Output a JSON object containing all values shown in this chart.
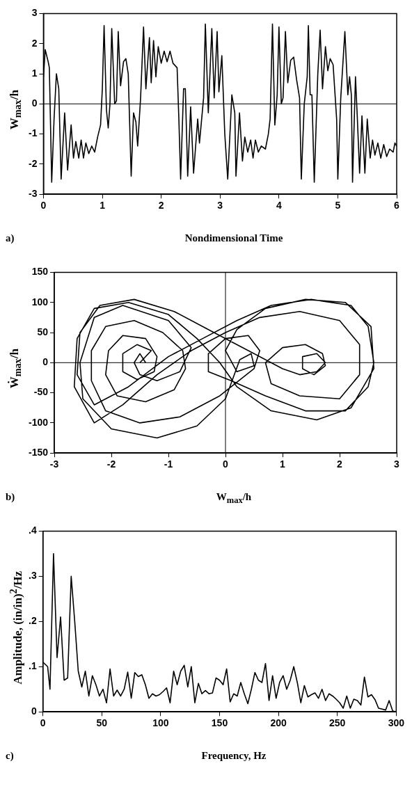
{
  "chart_data": [
    {
      "type": "line",
      "xlabel": "Nondimensional Time",
      "ylabel": "W$_{max}$/h",
      "annotations": [
        "a)"
      ],
      "marker": "none",
      "xlim": [
        0,
        6
      ],
      "ylim": [
        -3,
        3
      ],
      "xticks": [
        0,
        1,
        2,
        3,
        4,
        5,
        6
      ],
      "yticks": [
        -3,
        -2,
        -1,
        0,
        1,
        2,
        3
      ],
      "ref_lines": [
        {
          "axis": "y",
          "value": 0
        }
      ],
      "x": [
        0,
        0.03,
        0.08,
        0.1,
        0.14,
        0.18,
        0.22,
        0.26,
        0.3,
        0.36,
        0.41,
        0.47,
        0.51,
        0.55,
        0.6,
        0.64,
        0.68,
        0.72,
        0.77,
        0.82,
        0.87,
        0.92,
        0.97,
        1.0,
        1.03,
        1.07,
        1.1,
        1.13,
        1.16,
        1.21,
        1.24,
        1.27,
        1.31,
        1.36,
        1.4,
        1.44,
        1.49,
        1.53,
        1.57,
        1.6,
        1.65,
        1.7,
        1.74,
        1.8,
        1.83,
        1.87,
        1.91,
        1.95,
        2.0,
        2.05,
        2.1,
        2.15,
        2.2,
        2.27,
        2.3,
        2.33,
        2.38,
        2.41,
        2.45,
        2.5,
        2.55,
        2.62,
        2.65,
        2.72,
        2.75,
        2.8,
        2.86,
        2.9,
        2.95,
        2.98,
        3.03,
        3.08,
        3.13,
        3.2,
        3.25,
        3.27,
        3.33,
        3.38,
        3.42,
        3.47,
        3.52,
        3.56,
        3.6,
        3.65,
        3.7,
        3.77,
        3.82,
        3.85,
        3.89,
        3.93,
        3.97,
        4.0,
        4.04,
        4.07,
        4.11,
        4.15,
        4.2,
        4.25,
        4.3,
        4.35,
        4.38,
        4.43,
        4.48,
        4.5,
        4.53,
        4.56,
        4.6,
        4.66,
        4.7,
        4.74,
        4.79,
        4.83,
        4.87,
        4.92,
        4.98,
        5.0,
        5.05,
        5.12,
        5.17,
        5.2,
        5.23,
        5.25,
        5.28,
        5.3,
        5.33,
        5.37,
        5.41,
        5.46,
        5.5,
        5.55,
        5.59,
        5.63,
        5.68,
        5.73,
        5.78,
        5.83,
        5.88,
        5.94,
        5.97,
        6.0
      ],
      "series": [
        {
          "color": "#000000",
          "values": [
            0.9,
            1.8,
            1.4,
            1.2,
            -2.6,
            -0.5,
            1.0,
            0.5,
            -2.5,
            -0.3,
            -2.2,
            -0.7,
            -1.8,
            -1.25,
            -1.8,
            -1.2,
            -1.8,
            -1.3,
            -1.65,
            -1.4,
            -1.6,
            -1.1,
            -0.7,
            0.5,
            2.6,
            -0.2,
            -0.8,
            0.0,
            2.5,
            0.0,
            0.1,
            2.4,
            0.6,
            1.4,
            1.5,
            1.0,
            -2.4,
            -0.3,
            -0.6,
            -1.4,
            0.2,
            2.55,
            0.5,
            2.2,
            0.7,
            2.1,
            0.9,
            1.9,
            1.35,
            1.75,
            1.4,
            1.75,
            1.35,
            1.2,
            -0.5,
            -2.5,
            0.5,
            0.5,
            -2.4,
            -0.1,
            -2.3,
            -0.5,
            -1.3,
            0.2,
            2.65,
            -0.3,
            2.5,
            0.2,
            2.4,
            0.4,
            1.6,
            -1.0,
            -2.5,
            0.3,
            -0.3,
            -2.4,
            -0.3,
            -1.9,
            -1.1,
            -1.6,
            -1.2,
            -1.8,
            -1.2,
            -1.6,
            -1.4,
            -1.5,
            -1.0,
            -0.5,
            2.65,
            -0.7,
            0.3,
            2.55,
            0.0,
            0.2,
            2.4,
            0.7,
            1.45,
            1.55,
            0.8,
            0.2,
            -2.5,
            0.0,
            0.9,
            2.6,
            0.3,
            0.3,
            -2.6,
            1.0,
            2.45,
            0.5,
            1.9,
            1.1,
            1.5,
            1.3,
            -0.5,
            -2.5,
            0.2,
            2.4,
            0.3,
            0.9,
            0.3,
            -2.6,
            -0.5,
            0.9,
            -0.4,
            -2.3,
            -0.4,
            -2.3,
            -0.5,
            -1.8,
            -1.2,
            -1.7,
            -1.3,
            -1.8,
            -1.35,
            -1.75,
            -1.5,
            -1.6,
            -1.3,
            -1.4
          ]
        }
      ]
    },
    {
      "type": "line",
      "xlabel": "W$_{max}$/h",
      "ylabel": "Ẇ$_{max}$/h",
      "annotations": [
        "b)"
      ],
      "marker": "none",
      "xlim": [
        -3,
        3
      ],
      "ylim": [
        -150,
        150
      ],
      "xticks": [
        -3,
        -2,
        -1,
        0,
        1,
        2,
        3
      ],
      "yticks": [
        -150,
        -100,
        -50,
        0,
        50,
        100,
        150
      ],
      "ref_lines": [
        {
          "axis": "x",
          "value": 0
        },
        {
          "axis": "y",
          "value": 0
        }
      ],
      "x": [
        -1.5,
        -1.3,
        -1.55,
        -1.8,
        -1.8,
        -1.55,
        -1.25,
        -1.2,
        -1.4,
        -1.8,
        -2.05,
        -2.1,
        -1.9,
        -1.4,
        -0.9,
        -0.7,
        -0.75,
        -1.1,
        -1.6,
        -2.1,
        -2.35,
        -2.35,
        -2.1,
        -1.5,
        -0.8,
        -0.1,
        0.5,
        0.6,
        0.4,
        0.0,
        -0.3,
        -0.3,
        0.1,
        0.7,
        1.4,
        2.1,
        2.5,
        2.6,
        2.5,
        2.2,
        1.5,
        0.8,
        0.2,
        -0.4,
        -1.0,
        -1.7,
        -2.3,
        -2.6,
        -2.55,
        -2.2,
        -1.6,
        -0.9,
        -0.3,
        0.4,
        1.0,
        1.3,
        1.6,
        1.75,
        1.6,
        1.35,
        1.35,
        1.55,
        1.75,
        1.7,
        1.4,
        1.0,
        0.7,
        0.8,
        1.3,
        2.0,
        2.35,
        2.35,
        2.0,
        1.3,
        0.6,
        0.0,
        -0.6,
        -1.2,
        -1.8,
        -2.3,
        -2.65,
        -2.6,
        -2.3,
        -1.7,
        -1.0,
        -0.5,
        -0.1,
        0.2,
        0.8,
        1.6,
        2.2,
        2.6,
        2.55,
        2.1,
        1.4,
        0.7,
        0.2,
        0.0,
        0.2,
        0.5,
        0.45,
        0.25,
        0.0,
        -0.5,
        -1.2,
        -2.0,
        -2.5,
        -2.55,
        -2.3,
        -1.8,
        -1.0,
        -0.6,
        -0.8,
        -1.2,
        -1.5,
        -1.6,
        -1.5,
        -1.4
      ],
      "series": [
        {
          "color": "#000000",
          "values": [
            0,
            20,
            30,
            15,
            -15,
            -28,
            -15,
            10,
            40,
            45,
            20,
            -20,
            -55,
            -65,
            -45,
            -10,
            20,
            50,
            70,
            60,
            20,
            -30,
            -80,
            -100,
            -90,
            -55,
            -10,
            20,
            45,
            40,
            15,
            -15,
            -30,
            -55,
            -80,
            -80,
            -40,
            0,
            60,
            95,
            105,
            95,
            70,
            40,
            10,
            -40,
            -70,
            -20,
            50,
            95,
            105,
            85,
            55,
            20,
            -10,
            -20,
            -15,
            0,
            15,
            10,
            -10,
            -20,
            -5,
            15,
            30,
            25,
            0,
            -35,
            -55,
            -60,
            -20,
            30,
            70,
            85,
            75,
            50,
            20,
            -20,
            -70,
            -100,
            -40,
            40,
            90,
            100,
            80,
            40,
            0,
            -40,
            -80,
            -95,
            -75,
            -10,
            60,
            100,
            105,
            90,
            55,
            20,
            -15,
            -5,
            15,
            5,
            -60,
            -105,
            -125,
            -110,
            -60,
            0,
            75,
            95,
            70,
            25,
            -15,
            -30,
            -20,
            0,
            15,
            0
          ]
        }
      ]
    },
    {
      "type": "line",
      "xlabel": "Frequency, Hz",
      "ylabel": "Amplitude, (in/in)$^{2}$/Hz",
      "annotations": [
        "c)"
      ],
      "marker": "none",
      "xlim": [
        0,
        300
      ],
      "ylim": [
        0,
        0.4
      ],
      "xticks": [
        0,
        50,
        100,
        150,
        200,
        250,
        300
      ],
      "yticks": [
        0,
        {
          "value": 0.1,
          "label": ".1"
        },
        {
          "value": 0.2,
          "label": ".2"
        },
        {
          "value": 0.3,
          "label": ".3"
        },
        {
          "value": 0.4,
          "label": ".4"
        }
      ],
      "x": [
        0,
        4,
        6,
        9,
        12,
        15,
        18,
        21,
        24,
        27,
        30,
        33,
        36,
        39,
        42,
        45,
        48,
        51,
        54,
        57,
        60,
        63,
        66,
        69,
        72,
        75,
        78,
        81,
        84,
        87,
        90,
        93,
        96,
        99,
        102,
        105,
        108,
        111,
        114,
        117,
        120,
        123,
        126,
        129,
        132,
        135,
        138,
        141,
        144,
        147,
        150,
        153,
        156,
        159,
        162,
        165,
        168,
        171,
        174,
        177,
        180,
        183,
        186,
        189,
        192,
        195,
        198,
        201,
        204,
        207,
        210,
        213,
        216,
        219,
        222,
        225,
        228,
        231,
        234,
        237,
        240,
        243,
        246,
        249,
        252,
        255,
        258,
        261,
        264,
        267,
        270,
        273,
        276,
        279,
        282,
        285,
        288,
        291,
        294,
        297,
        300
      ],
      "series": [
        {
          "color": "#000000",
          "values": [
            0.11,
            0.1,
            0.05,
            0.35,
            0.12,
            0.21,
            0.07,
            0.075,
            0.3,
            0.2,
            0.09,
            0.055,
            0.09,
            0.035,
            0.08,
            0.06,
            0.035,
            0.05,
            0.02,
            0.095,
            0.035,
            0.048,
            0.035,
            0.05,
            0.088,
            0.03,
            0.087,
            0.078,
            0.082,
            0.06,
            0.03,
            0.04,
            0.035,
            0.038,
            0.045,
            0.053,
            0.02,
            0.09,
            0.06,
            0.09,
            0.103,
            0.055,
            0.1,
            0.02,
            0.063,
            0.04,
            0.047,
            0.04,
            0.042,
            0.075,
            0.07,
            0.06,
            0.095,
            0.022,
            0.04,
            0.035,
            0.065,
            0.04,
            0.018,
            0.05,
            0.087,
            0.07,
            0.065,
            0.107,
            0.025,
            0.08,
            0.03,
            0.065,
            0.08,
            0.05,
            0.07,
            0.1,
            0.065,
            0.02,
            0.058,
            0.033,
            0.038,
            0.042,
            0.03,
            0.05,
            0.025,
            0.04,
            0.035,
            0.028,
            0.02,
            0.008,
            0.035,
            0.008,
            0.028,
            0.025,
            0.015,
            0.077,
            0.033,
            0.038,
            0.027,
            0.008,
            0.006,
            0.004,
            0.025,
            0.002,
            0
          ]
        }
      ]
    }
  ]
}
